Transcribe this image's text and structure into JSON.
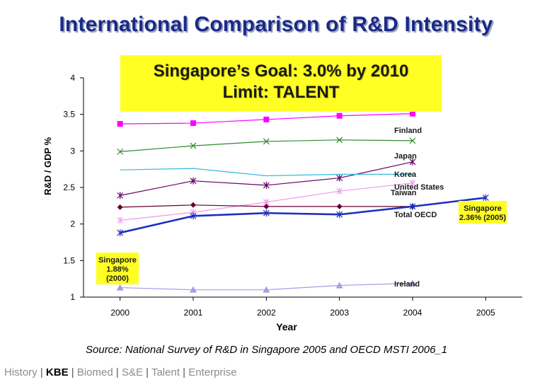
{
  "title": "International Comparison of R&D Intensity",
  "goal_box": {
    "line1": "Singapore’s Goal: 3.0% by 2010",
    "line2": "Limit: TALENT"
  },
  "source": "Source: National Survey of R&D in Singapore 2005 and OECD MSTI 2006_1",
  "nav": {
    "items": [
      {
        "label": "History",
        "active": false
      },
      {
        "label": "KBE",
        "active": true
      },
      {
        "label": "Biomed",
        "active": false
      },
      {
        "label": "S&E",
        "active": false
      },
      {
        "label": "Talent",
        "active": false
      },
      {
        "label": "Enterprise",
        "active": false
      }
    ],
    "separator": "|"
  },
  "chart_data": {
    "type": "line",
    "title": "International Comparison of R&D Intensity",
    "xlabel": "Year",
    "ylabel": "R&D / GDP %",
    "xlim": [
      1999.5,
      2005.5
    ],
    "ylim": [
      1,
      4
    ],
    "x_ticks": [
      "2000",
      "2001",
      "2002",
      "2003",
      "2004",
      "2005"
    ],
    "y_ticks": [
      "1",
      "1.5",
      "2",
      "2.5",
      "3",
      "3.5",
      "4"
    ],
    "series": [
      {
        "name": "Finland",
        "color": "#ff00ff",
        "marker": "square",
        "x": [
          2000,
          2001,
          2002,
          2003,
          2004
        ],
        "values": [
          3.37,
          3.38,
          3.43,
          3.48,
          3.51
        ]
      },
      {
        "name": "Japan",
        "color": "#2e8b2e",
        "marker": "x",
        "x": [
          2000,
          2001,
          2002,
          2003,
          2004
        ],
        "values": [
          2.99,
          3.07,
          3.13,
          3.15,
          3.14
        ]
      },
      {
        "name": "Korea",
        "color": "#660066",
        "marker": "star",
        "x": [
          2000,
          2001,
          2002,
          2003,
          2004
        ],
        "values": [
          2.39,
          2.59,
          2.53,
          2.63,
          2.85
        ]
      },
      {
        "name": "United States",
        "color": "#33bbdd",
        "marker": "none",
        "x": [
          2000,
          2001,
          2002,
          2003,
          2004
        ],
        "values": [
          2.74,
          2.76,
          2.66,
          2.68,
          2.68
        ]
      },
      {
        "name": "Taiwan",
        "color": "#ee99ee",
        "marker": "star",
        "x": [
          2000,
          2001,
          2002,
          2003,
          2004
        ],
        "values": [
          2.05,
          2.16,
          2.3,
          2.45,
          2.56
        ]
      },
      {
        "name": "Total OECD",
        "color": "#660033",
        "marker": "diamond",
        "x": [
          2000,
          2001,
          2002,
          2003,
          2004
        ],
        "values": [
          2.23,
          2.26,
          2.24,
          2.24,
          2.24
        ]
      },
      {
        "name": "Singapore",
        "color": "#1f2fbf",
        "marker": "star",
        "x": [
          2000,
          2001,
          2002,
          2003,
          2004,
          2005
        ],
        "values": [
          1.88,
          2.11,
          2.15,
          2.13,
          2.24,
          2.36
        ]
      },
      {
        "name": "Ireland",
        "color": "#a89ce8",
        "marker": "triangle",
        "x": [
          2000,
          2001,
          2002,
          2003,
          2004
        ],
        "values": [
          1.13,
          1.1,
          1.1,
          1.16,
          1.19
        ]
      }
    ],
    "annotations": [
      {
        "text": "Singapore 1.88% (2000)",
        "lines": [
          "Singapore",
          "1.88%",
          "(2000)"
        ],
        "near": "Singapore 2000"
      },
      {
        "text": "Singapore 2.36% (2005)",
        "lines": [
          "Singapore",
          "2.36% (2005)"
        ],
        "near": "Singapore 2005"
      }
    ]
  }
}
